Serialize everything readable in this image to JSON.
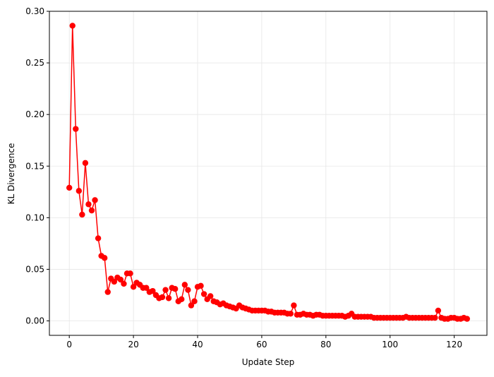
{
  "chart_data": {
    "type": "line",
    "title": "",
    "xlabel": "Update Step",
    "ylabel": "KL Divergence",
    "xlim": [
      -6.2,
      130.2
    ],
    "ylim": [
      -0.014,
      0.3
    ],
    "grid": true,
    "legend": "none",
    "x_ticks": [
      0,
      20,
      40,
      60,
      80,
      100,
      120
    ],
    "x_tick_labels": [
      "0",
      "20",
      "40",
      "60",
      "80",
      "100",
      "120"
    ],
    "y_ticks": [
      0.0,
      0.05,
      0.1,
      0.15,
      0.2,
      0.25,
      0.3
    ],
    "y_tick_labels": [
      "0.00",
      "0.05",
      "0.10",
      "0.15",
      "0.20",
      "0.25",
      "0.30"
    ],
    "series": [
      {
        "color": "#ff0000",
        "marker": "circle",
        "x": [
          0,
          1,
          2,
          3,
          4,
          5,
          6,
          7,
          8,
          9,
          10,
          11,
          12,
          13,
          14,
          15,
          16,
          17,
          18,
          19,
          20,
          21,
          22,
          23,
          24,
          25,
          26,
          27,
          28,
          29,
          30,
          31,
          32,
          33,
          34,
          35,
          36,
          37,
          38,
          39,
          40,
          41,
          42,
          43,
          44,
          45,
          46,
          47,
          48,
          49,
          50,
          51,
          52,
          53,
          54,
          55,
          56,
          57,
          58,
          59,
          60,
          61,
          62,
          63,
          64,
          65,
          66,
          67,
          68,
          69,
          70,
          71,
          72,
          73,
          74,
          75,
          76,
          77,
          78,
          79,
          80,
          81,
          82,
          83,
          84,
          85,
          86,
          87,
          88,
          89,
          90,
          91,
          92,
          93,
          94,
          95,
          96,
          97,
          98,
          99,
          100,
          101,
          102,
          103,
          104,
          105,
          106,
          107,
          108,
          109,
          110,
          111,
          112,
          113,
          114,
          115,
          116,
          117,
          118,
          119,
          120,
          121,
          122,
          123,
          124
        ],
        "values": [
          0.129,
          0.286,
          0.186,
          0.126,
          0.103,
          0.153,
          0.113,
          0.107,
          0.117,
          0.08,
          0.063,
          0.061,
          0.028,
          0.041,
          0.038,
          0.042,
          0.04,
          0.036,
          0.046,
          0.046,
          0.033,
          0.037,
          0.035,
          0.032,
          0.032,
          0.028,
          0.029,
          0.025,
          0.022,
          0.023,
          0.03,
          0.022,
          0.032,
          0.031,
          0.019,
          0.021,
          0.035,
          0.03,
          0.015,
          0.019,
          0.033,
          0.034,
          0.026,
          0.021,
          0.024,
          0.019,
          0.018,
          0.016,
          0.017,
          0.015,
          0.014,
          0.013,
          0.012,
          0.015,
          0.013,
          0.012,
          0.011,
          0.01,
          0.01,
          0.01,
          0.01,
          0.01,
          0.009,
          0.009,
          0.008,
          0.008,
          0.008,
          0.008,
          0.007,
          0.007,
          0.015,
          0.006,
          0.006,
          0.007,
          0.006,
          0.006,
          0.005,
          0.006,
          0.006,
          0.005,
          0.005,
          0.005,
          0.005,
          0.005,
          0.005,
          0.005,
          0.004,
          0.005,
          0.007,
          0.004,
          0.004,
          0.004,
          0.004,
          0.004,
          0.004,
          0.003,
          0.003,
          0.003,
          0.003,
          0.003,
          0.003,
          0.003,
          0.003,
          0.003,
          0.003,
          0.004,
          0.003,
          0.003,
          0.003,
          0.003,
          0.003,
          0.003,
          0.003,
          0.003,
          0.003,
          0.01,
          0.003,
          0.002,
          0.002,
          0.003,
          0.003,
          0.002,
          0.002,
          0.003,
          0.002
        ]
      }
    ]
  }
}
